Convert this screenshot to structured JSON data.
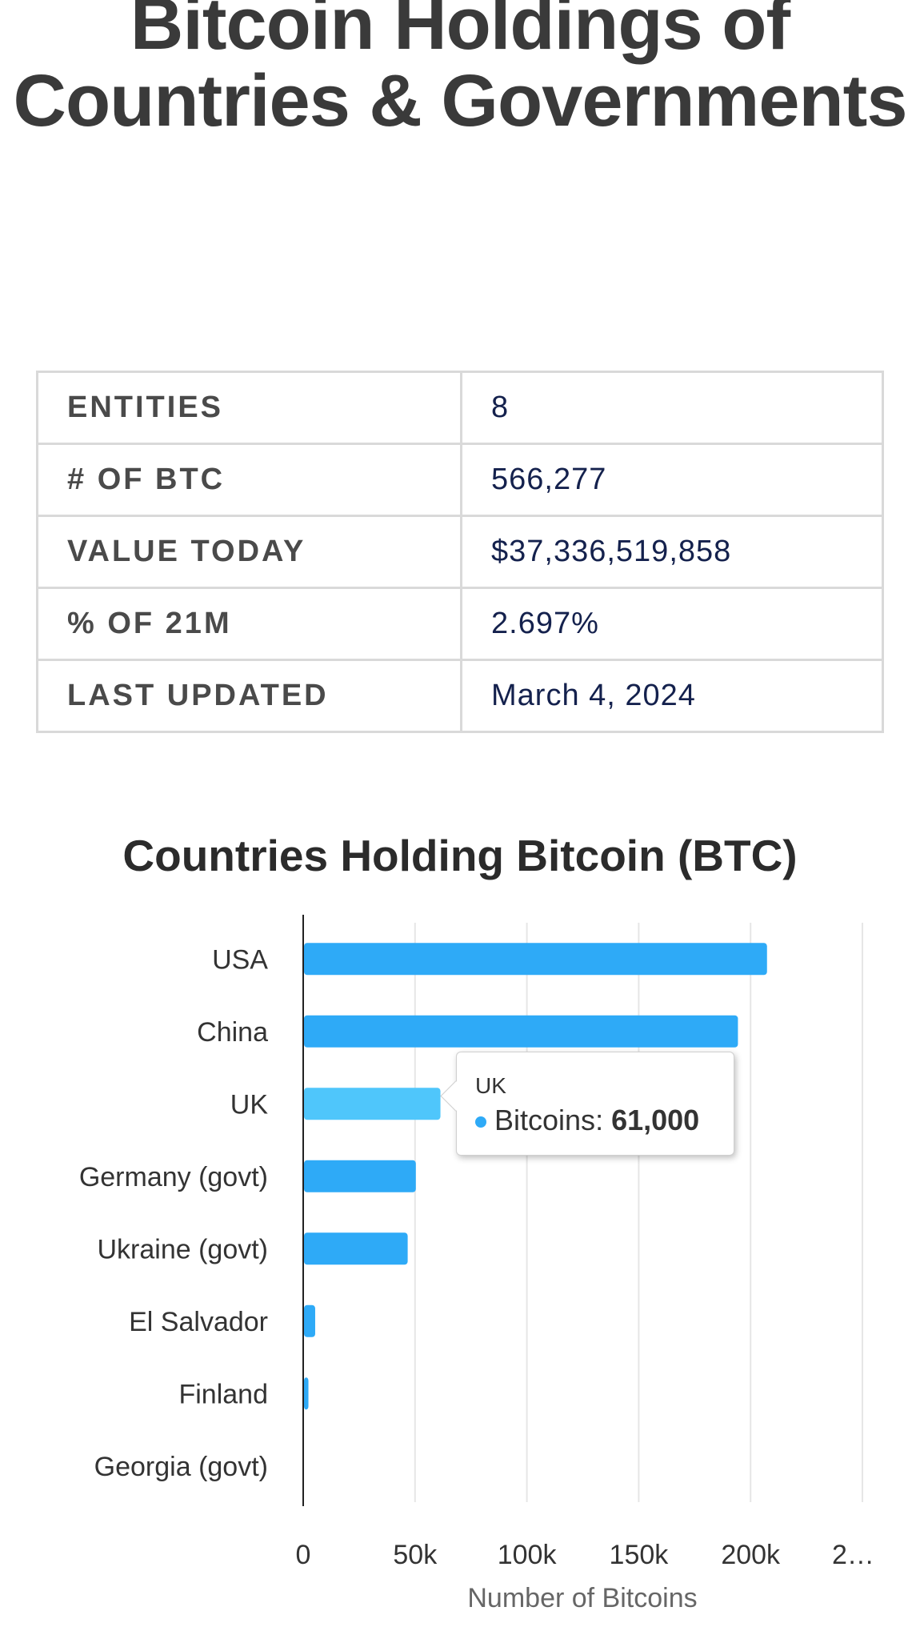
{
  "page_title": "Bitcoin Holdings of Countries & Governments",
  "stats": [
    {
      "label": "ENTITIES",
      "value": "8"
    },
    {
      "label": "# OF BTC",
      "value": "566,277"
    },
    {
      "label": "VALUE TODAY",
      "value": "$37,336,519,858"
    },
    {
      "label": "% OF 21M",
      "value": "2.697%"
    },
    {
      "label": "LAST UPDATED",
      "value": "March 4, 2024"
    }
  ],
  "chart_data": {
    "type": "bar",
    "orientation": "horizontal",
    "title": "Countries Holding Bitcoin (BTC)",
    "xlabel": "Number of Bitcoins",
    "ylabel": "",
    "categories": [
      "USA",
      "China",
      "UK",
      "Germany (govt)",
      "Ukraine (govt)",
      "El Salvador",
      "Finland",
      "Georgia (govt)"
    ],
    "series": [
      {
        "name": "Bitcoins",
        "values": [
          207000,
          194000,
          61000,
          50000,
          46351,
          5000,
          1981,
          66
        ]
      }
    ],
    "xlim": [
      0,
      250000
    ],
    "xticks": [
      "0",
      "50k",
      "100k",
      "150k",
      "200k",
      "2…"
    ],
    "grid": true,
    "bar_color": "#2eaaf7",
    "highlight_color": "#4fc6fb",
    "highlighted_category": "UK",
    "tooltip": {
      "title": "UK",
      "series": "Bitcoins",
      "value": "61,000"
    }
  }
}
